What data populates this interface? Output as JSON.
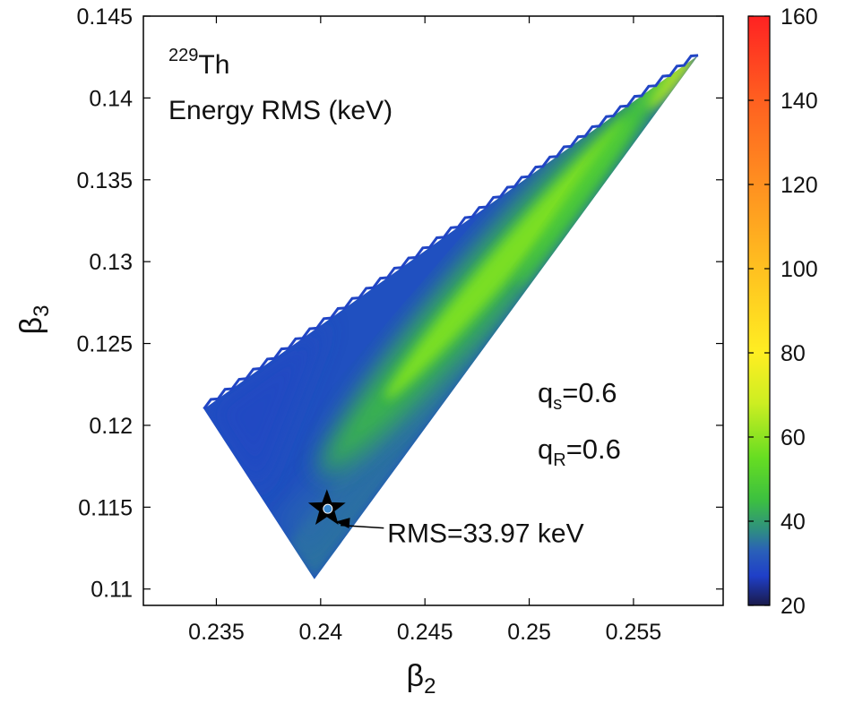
{
  "chart_data": {
    "type": "heatmap",
    "isotope": {
      "mass_number": "229",
      "symbol": "Th"
    },
    "title": "Energy RMS (keV)",
    "xlabel": {
      "base": "β",
      "sub": "2"
    },
    "ylabel": {
      "base": "β",
      "sub": "3"
    },
    "xlim": [
      0.2315,
      0.2593
    ],
    "ylim": [
      0.109,
      0.145
    ],
    "x_ticks": [
      0.235,
      0.24,
      0.245,
      0.25,
      0.255
    ],
    "x_tick_labels": [
      "0.235",
      "0.24",
      "0.245",
      "0.25",
      "0.255"
    ],
    "y_ticks": [
      0.11,
      0.115,
      0.12,
      0.125,
      0.13,
      0.135,
      0.14,
      0.145
    ],
    "y_tick_labels": [
      "0.11",
      "0.115",
      "0.12",
      "0.125",
      "0.13",
      "0.135",
      "0.14",
      "0.145"
    ],
    "region_vertices": [
      [
        0.2344,
        0.121
      ],
      [
        0.2397,
        0.1106
      ],
      [
        0.2581,
        0.1426
      ]
    ],
    "colorbar": {
      "min": 20,
      "max": 160,
      "ticks": [
        20,
        40,
        60,
        80,
        100,
        120,
        140,
        160
      ],
      "tick_labels": [
        "20",
        "40",
        "60",
        "80",
        "100",
        "120",
        "140",
        "160"
      ],
      "stops": [
        {
          "value": 20,
          "color": "#1a1a4a"
        },
        {
          "value": 27,
          "color": "#1f3fc8"
        },
        {
          "value": 33,
          "color": "#2a60b8"
        },
        {
          "value": 38,
          "color": "#2f8f80"
        },
        {
          "value": 45,
          "color": "#3cc040"
        },
        {
          "value": 55,
          "color": "#66dd22"
        },
        {
          "value": 68,
          "color": "#ccee22"
        },
        {
          "value": 80,
          "color": "#ffee22"
        },
        {
          "value": 100,
          "color": "#ffc020"
        },
        {
          "value": 120,
          "color": "#ff9020"
        },
        {
          "value": 140,
          "color": "#ff6020"
        },
        {
          "value": 160,
          "color": "#ff2222"
        }
      ]
    },
    "params": [
      {
        "name": "q",
        "sub": "s",
        "value": "=0.6"
      },
      {
        "name": "q",
        "sub": "R",
        "value": "=0.6"
      }
    ],
    "marker": {
      "beta2": 0.2403,
      "beta3": 0.1149,
      "symbol": "star"
    },
    "annotation": {
      "text": "RMS=33.97 keV",
      "arrow_to": [
        0.2407,
        0.114
      ],
      "text_at": [
        0.2432,
        0.1134
      ]
    }
  }
}
